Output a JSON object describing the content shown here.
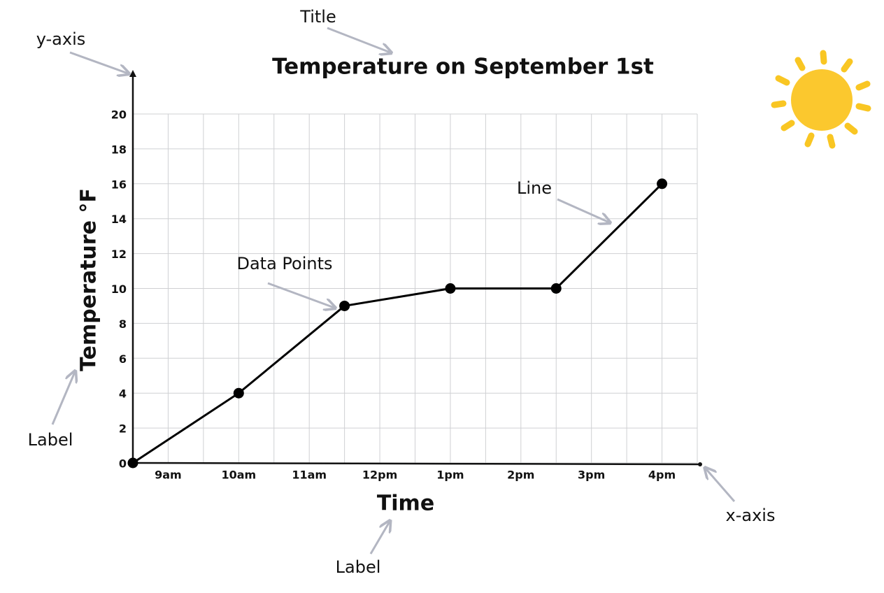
{
  "chart_data": {
    "type": "line",
    "title": "Temperature on September 1st",
    "x_label": "Time",
    "y_label": "Temperature °F",
    "x": [
      8.5,
      10,
      11.5,
      13,
      14.5,
      16
    ],
    "values": [
      0,
      4,
      9,
      10,
      10,
      16
    ],
    "color": "#000000",
    "xlim": [
      8.5,
      16.5
    ],
    "xticks": [
      {
        "value": 9,
        "label": "9am"
      },
      {
        "value": 10,
        "label": "10am"
      },
      {
        "value": 11,
        "label": "11am"
      },
      {
        "value": 12,
        "label": "12pm"
      },
      {
        "value": 13,
        "label": "1pm"
      },
      {
        "value": 14,
        "label": "2pm"
      },
      {
        "value": 15,
        "label": "3pm"
      },
      {
        "value": 16,
        "label": "4pm"
      }
    ],
    "ylim": [
      0,
      20
    ],
    "yticks": [
      0,
      2,
      4,
      6,
      8,
      10,
      12,
      14,
      16,
      18,
      20
    ],
    "grid": true,
    "annotations": [
      "Title",
      "y-axis",
      "Label",
      "Data Points",
      "Line",
      "x-axis",
      "Label"
    ]
  }
}
